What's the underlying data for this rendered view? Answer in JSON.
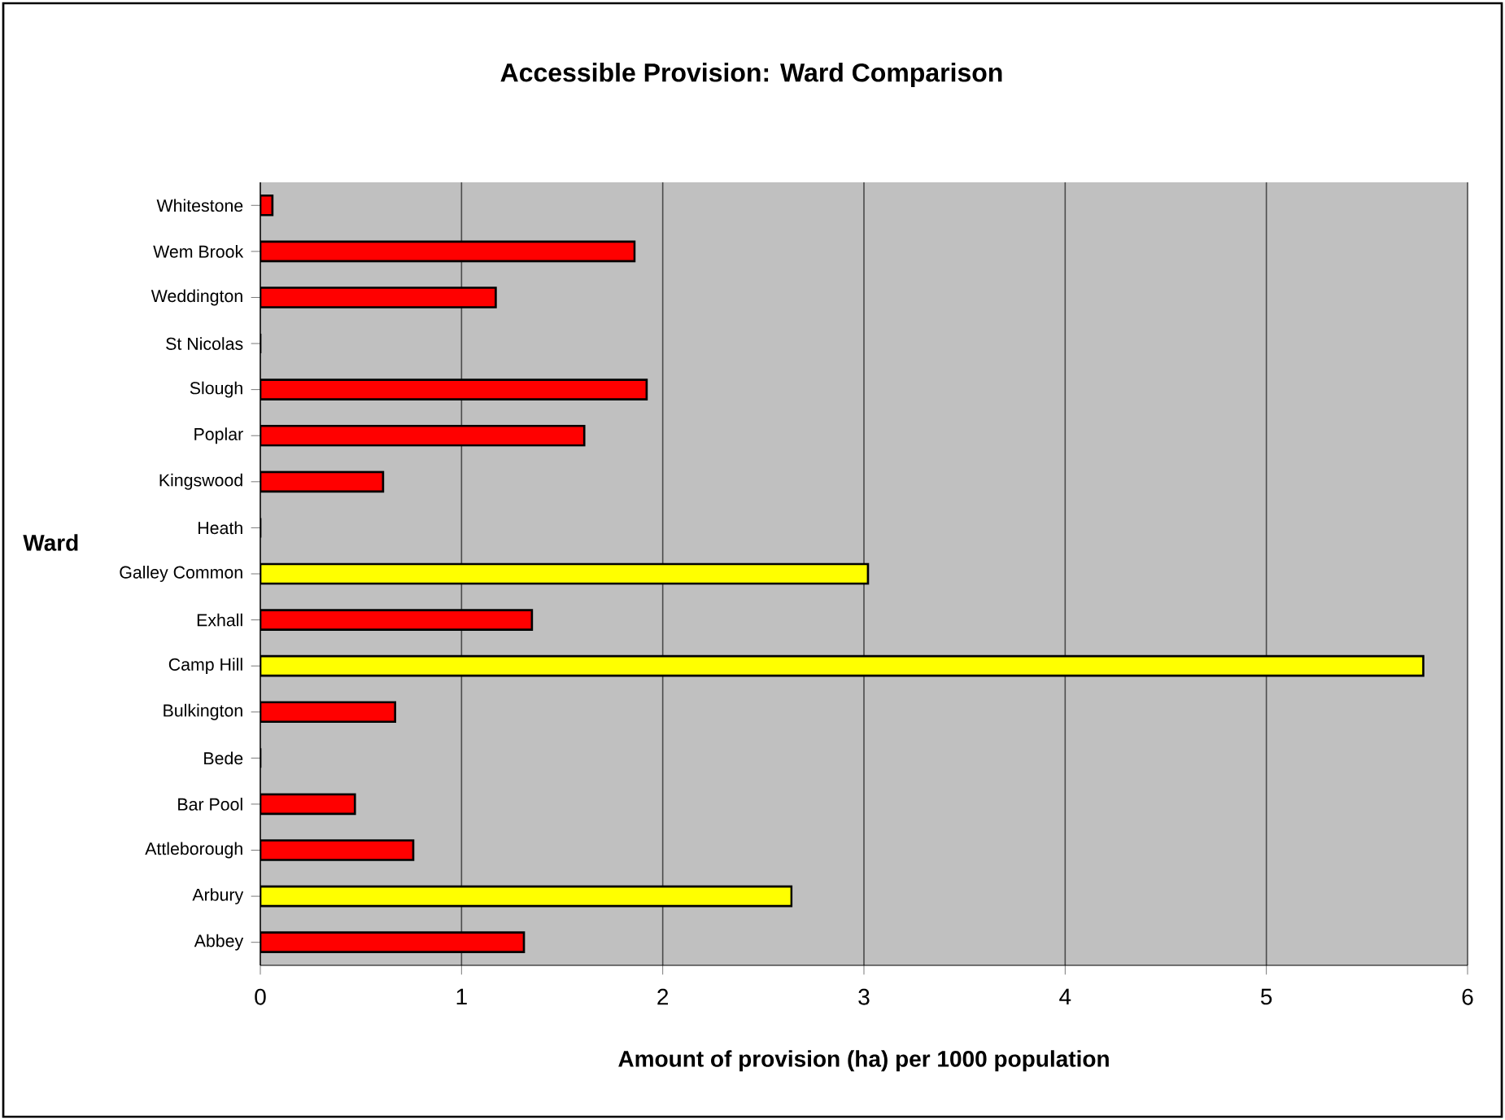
{
  "chart_data": {
    "type": "bar",
    "orientation": "horizontal",
    "title": "Accessible Provision: Ward Comparison",
    "xlabel": "Amount of provision (ha) per 1000 population",
    "ylabel": "Ward",
    "categories": [
      "Whitestone",
      "Wem Brook",
      "Weddington",
      "St Nicolas",
      "Slough",
      "Poplar",
      "Kingswood",
      "Heath",
      "Galley Common",
      "Exhall",
      "Camp Hill",
      "Bulkington",
      "Bede",
      "Bar Pool",
      "Attleborough",
      "Arbury",
      "Abbey"
    ],
    "values": [
      0.06,
      1.86,
      1.17,
      0,
      1.92,
      1.61,
      0.61,
      0,
      3.02,
      1.35,
      5.78,
      0.67,
      0,
      0.47,
      0.76,
      2.64,
      1.31
    ],
    "colors": [
      "#ff0000",
      "#ff0000",
      "#ff0000",
      "#ff0000",
      "#ff0000",
      "#ff0000",
      "#ff0000",
      "#ff0000",
      "#ffff00",
      "#ff0000",
      "#ffff00",
      "#ff0000",
      "#ff0000",
      "#ff0000",
      "#ff0000",
      "#ffff00",
      "#ff0000"
    ],
    "xlim": [
      0,
      6
    ],
    "xticks": [
      0,
      1,
      2,
      3,
      4,
      5,
      6
    ],
    "grid": "x"
  }
}
